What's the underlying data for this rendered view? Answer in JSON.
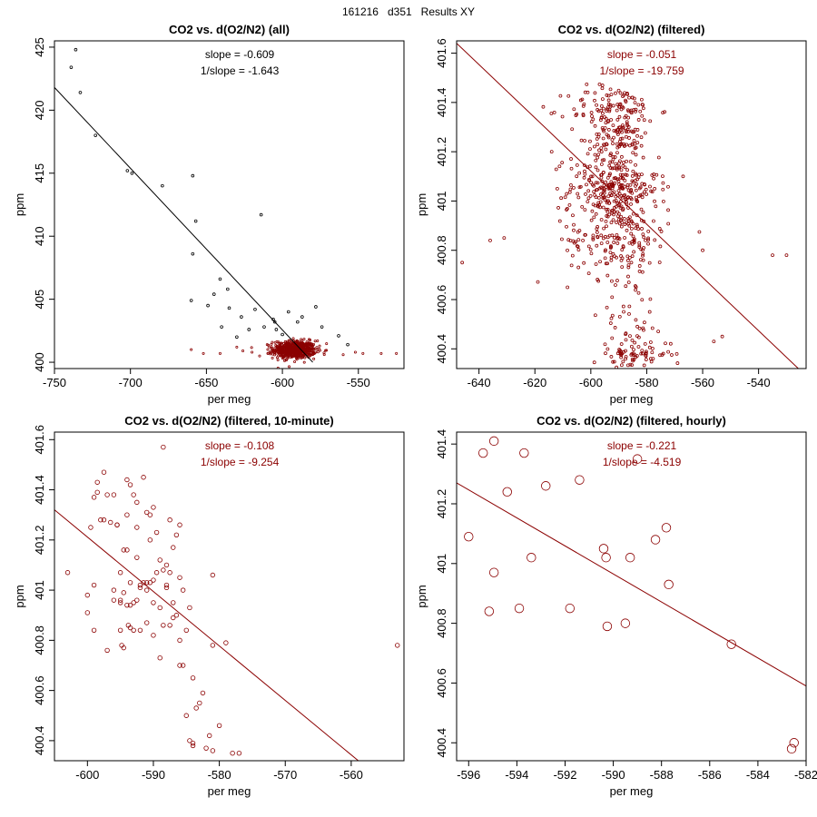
{
  "page_title": "161216   d351   Results XY",
  "colors": {
    "black": "#000000",
    "dark_red": "#8b0000"
  },
  "chart_data": [
    {
      "type": "scatter",
      "title": "CO2 vs. d(O2/N2) (all)",
      "xlabel": "per meg",
      "ylabel": "ppm",
      "xlim": [
        -750,
        -520
      ],
      "ylim": [
        399.5,
        425.5
      ],
      "xticks": [
        -750,
        -700,
        -650,
        -600,
        -550
      ],
      "yticks": [
        400,
        405,
        410,
        415,
        420,
        425
      ],
      "annotations": {
        "slope": "slope = -0.609",
        "inv_slope": "1/slope = -1.643",
        "color": "#000000"
      },
      "line": {
        "x": [
          -750,
          -580
        ],
        "y": [
          421.8,
          400.0
        ],
        "color": "#000000"
      },
      "series": [
        {
          "name": "outliers",
          "color": "#000000",
          "marker_r": 1.4,
          "points": [
            [
              -736,
              424.8
            ],
            [
              -739,
              423.4
            ],
            [
              -733,
              421.4
            ],
            [
              -723,
              418.0
            ],
            [
              -702,
              415.2
            ],
            [
              -699,
              415.0
            ],
            [
              -679,
              414.0
            ],
            [
              -659,
              414.8
            ],
            [
              -657,
              411.2
            ],
            [
              -659,
              408.6
            ],
            [
              -649,
              404.5
            ],
            [
              -645,
              405.4
            ],
            [
              -641,
              406.6
            ],
            [
              -636,
              405.8
            ],
            [
              -635,
              404.3
            ],
            [
              -630,
              402.0
            ],
            [
              -627,
              403.6
            ],
            [
              -622,
              402.6
            ],
            [
              -618,
              404.2
            ],
            [
              -614,
              411.7
            ],
            [
              -612,
              402.8
            ],
            [
              -606,
              403.4
            ],
            [
              -604,
              402.6
            ],
            [
              -600,
              402.2
            ],
            [
              -590,
              403.2
            ],
            [
              -587,
              403.6
            ],
            [
              -578,
              404.4
            ],
            [
              -574,
              402.8
            ],
            [
              -563,
              402.1
            ],
            [
              -557,
              401.4
            ],
            [
              -660,
              404.9
            ],
            [
              -605,
              403.2
            ],
            [
              -640,
              402.8
            ],
            [
              -596,
              404.0
            ]
          ]
        },
        {
          "name": "filtered",
          "color": "#8b0000",
          "marker_r": 1.1,
          "generated": true,
          "xc": -592,
          "xs": 7,
          "yc": 401.0,
          "ys": 0.35,
          "n": 650,
          "extra": [
            [
              -652,
              400.7
            ],
            [
              -641,
              400.7
            ],
            [
              -626,
              400.9
            ],
            [
              -620,
              400.8
            ],
            [
              -552,
              400.8
            ],
            [
              -547,
              400.7
            ],
            [
              -535,
              400.7
            ],
            [
              -525,
              400.7
            ],
            [
              -660,
              401.0
            ],
            [
              -615,
              400.5
            ],
            [
              -630,
              401.2
            ],
            [
              -560,
              400.6
            ]
          ]
        }
      ]
    },
    {
      "type": "scatter",
      "title": "CO2 vs. d(O2/N2) (filtered)",
      "xlabel": "per meg",
      "ylabel": "ppm",
      "xlim": [
        -648,
        -523
      ],
      "ylim": [
        400.32,
        401.65
      ],
      "xticks": [
        -640,
        -620,
        -600,
        -580,
        -560,
        -540
      ],
      "yticks": [
        400.4,
        400.6,
        400.8,
        401.0,
        401.2,
        401.4,
        401.6
      ],
      "annotations": {
        "slope": "slope = -0.051",
        "inv_slope": "1/slope = -19.759",
        "color": "#8b0000"
      },
      "line": {
        "x": [
          -648,
          -523
        ],
        "y": [
          401.64,
          400.29
        ],
        "color": "#8b0000"
      },
      "series": [
        {
          "name": "filtered",
          "color": "#8b0000",
          "marker_r": 1.5,
          "generated": true,
          "clusters": [
            {
              "yc": 401.05,
              "ys": 0.08,
              "xc": -592,
              "xs": 8,
              "n": 300
            },
            {
              "yc": 401.37,
              "ys": 0.05,
              "xc": -592,
              "xs": 8,
              "n": 120
            },
            {
              "yc": 401.25,
              "ys": 0.03,
              "xc": -590,
              "xs": 5,
              "n": 70
            },
            {
              "yc": 400.84,
              "ys": 0.08,
              "xc": -590,
              "xs": 9,
              "n": 160
            },
            {
              "yc": 400.38,
              "ys": 0.03,
              "xc": -585,
              "xs": 7,
              "n": 70
            },
            {
              "yc": 400.5,
              "ys": 0.06,
              "xc": -585,
              "xs": 6,
              "n": 35
            }
          ],
          "extra": [
            [
              -646,
              400.75
            ],
            [
              -636,
              400.84
            ],
            [
              -631,
              400.85
            ],
            [
              -535,
              400.78
            ],
            [
              -530,
              400.78
            ],
            [
              -612,
              401.05
            ],
            [
              -567,
              401.1
            ],
            [
              -560,
              400.8
            ],
            [
              -553,
              400.45
            ],
            [
              -556,
              400.43
            ],
            [
              -614,
              401.2
            ]
          ]
        }
      ]
    },
    {
      "type": "scatter",
      "title": "CO2 vs. d(O2/N2) (filtered, 10-minute)",
      "xlabel": "per meg",
      "ylabel": "ppm",
      "xlim": [
        -605,
        -552
      ],
      "ylim": [
        400.32,
        401.63
      ],
      "xticks": [
        -600,
        -590,
        -580,
        -570,
        -560
      ],
      "yticks": [
        400.4,
        400.6,
        400.8,
        401.0,
        401.2,
        401.4,
        401.6
      ],
      "annotations": {
        "slope": "slope = -0.108",
        "inv_slope": "1/slope = -9.254",
        "color": "#8b0000"
      },
      "line": {
        "x": [
          -605,
          -558
        ],
        "y": [
          401.32,
          400.3
        ],
        "color": "#8b0000"
      },
      "series": [
        {
          "name": "ten_minute",
          "color": "#8b0000",
          "marker_r": 2.3,
          "points": [
            [
              -603,
              401.07
            ],
            [
              -600,
              400.91
            ],
            [
              -600,
              400.98
            ],
            [
              -599.5,
              401.25
            ],
            [
              -599,
              400.84
            ],
            [
              -599,
              401.02
            ],
            [
              -598.5,
              401.43
            ],
            [
              -598.5,
              401.39
            ],
            [
              -598,
              401.28
            ],
            [
              -597.5,
              401.47
            ],
            [
              -597,
              401.38
            ],
            [
              -597,
              400.76
            ],
            [
              -596.5,
              401.27
            ],
            [
              -596,
              401.38
            ],
            [
              -596,
              401.0
            ],
            [
              -595.5,
              401.26
            ],
            [
              -595,
              400.84
            ],
            [
              -595,
              400.95
            ],
            [
              -595,
              401.07
            ],
            [
              -594.8,
              400.78
            ],
            [
              -594.5,
              400.99
            ],
            [
              -594.5,
              401.16
            ],
            [
              -594.5,
              400.77
            ],
            [
              -594,
              401.3
            ],
            [
              -594,
              401.44
            ],
            [
              -593.8,
              400.86
            ],
            [
              -593.5,
              401.42
            ],
            [
              -593.5,
              400.94
            ],
            [
              -593.5,
              401.03
            ],
            [
              -593,
              400.84
            ],
            [
              -593,
              401.38
            ],
            [
              -592.5,
              401.35
            ],
            [
              -592.5,
              401.25
            ],
            [
              -592.5,
              401.13
            ],
            [
              -592,
              400.84
            ],
            [
              -592,
              401.01
            ],
            [
              -591.5,
              401.03
            ],
            [
              -591.5,
              401.45
            ],
            [
              -591,
              401.31
            ],
            [
              -591,
              400.87
            ],
            [
              -590.5,
              401.3
            ],
            [
              -590.5,
              401.2
            ],
            [
              -590.5,
              401.03
            ],
            [
              -590,
              400.95
            ],
            [
              -590,
              401.33
            ],
            [
              -590,
              400.82
            ],
            [
              -589.5,
              401.23
            ],
            [
              -589,
              400.93
            ],
            [
              -589,
              401.12
            ],
            [
              -589,
              400.73
            ],
            [
              -588.5,
              401.08
            ],
            [
              -588.5,
              400.86
            ],
            [
              -588.5,
              401.57
            ],
            [
              -588,
              401.1
            ],
            [
              -588,
              401.02
            ],
            [
              -587.5,
              401.28
            ],
            [
              -587.5,
              400.86
            ],
            [
              -587.5,
              401.07
            ],
            [
              -587,
              401.17
            ],
            [
              -587,
              400.95
            ],
            [
              -587,
              400.89
            ],
            [
              -586.5,
              401.22
            ],
            [
              -586.5,
              400.9
            ],
            [
              -586,
              401.05
            ],
            [
              -586,
              400.8
            ],
            [
              -586,
              401.26
            ],
            [
              -585.5,
              400.7
            ],
            [
              -585.5,
              401.0
            ],
            [
              -585,
              400.84
            ],
            [
              -585,
              400.5
            ],
            [
              -584.5,
              400.4
            ],
            [
              -584.5,
              400.93
            ],
            [
              -584,
              400.65
            ],
            [
              -584,
              400.39
            ],
            [
              -584,
              400.38
            ],
            [
              -583.5,
              400.53
            ],
            [
              -583,
              400.55
            ],
            [
              -582.5,
              400.59
            ],
            [
              -582,
              400.37
            ],
            [
              -581.5,
              400.42
            ],
            [
              -581,
              400.78
            ],
            [
              -581,
              400.36
            ],
            [
              -581,
              401.06
            ],
            [
              -580,
              400.46
            ],
            [
              -579,
              400.79
            ],
            [
              -578,
              400.35
            ],
            [
              -577,
              400.35
            ],
            [
              -553,
              400.78
            ],
            [
              -596,
              400.96
            ],
            [
              -592,
              401.02
            ],
            [
              -594,
              401.16
            ],
            [
              -591,
              401.03
            ],
            [
              -593,
              400.95
            ],
            [
              -595.5,
              401.26
            ],
            [
              -599,
              401.37
            ],
            [
              -597.5,
              401.28
            ],
            [
              -590,
              401.04
            ],
            [
              -592.5,
              400.96
            ],
            [
              -589.5,
              401.07
            ],
            [
              -588,
              401.01
            ],
            [
              -586,
              400.7
            ],
            [
              -594,
              400.94
            ],
            [
              -591,
              401.0
            ],
            [
              -593.5,
              400.85
            ],
            [
              -595,
              400.96
            ]
          ]
        }
      ]
    },
    {
      "type": "scatter",
      "title": "CO2 vs. d(O2/N2) (filtered, hourly)",
      "xlabel": "per meg",
      "ylabel": "ppm",
      "xlim": [
        -596.5,
        -582
      ],
      "ylim": [
        400.34,
        401.44
      ],
      "xticks": [
        -596,
        -594,
        -592,
        -590,
        -588,
        -586,
        -584,
        -582
      ],
      "yticks": [
        400.4,
        400.6,
        400.8,
        401.0,
        401.2,
        401.4
      ],
      "annotations": {
        "slope": "slope = -0.221",
        "inv_slope": "1/slope = -4.519",
        "color": "#8b0000"
      },
      "line": {
        "x": [
          -596.5,
          -582
        ],
        "y": [
          401.27,
          400.59
        ],
        "color": "#8b0000"
      },
      "series": [
        {
          "name": "hourly",
          "color": "#8b0000",
          "marker_r": 4.8,
          "points": [
            [
              -596.0,
              401.09
            ],
            [
              -595.4,
              401.37
            ],
            [
              -594.95,
              401.41
            ],
            [
              -595.15,
              400.84
            ],
            [
              -594.95,
              400.97
            ],
            [
              -594.4,
              401.24
            ],
            [
              -593.7,
              401.37
            ],
            [
              -593.4,
              401.02
            ],
            [
              -593.9,
              400.85
            ],
            [
              -592.8,
              401.26
            ],
            [
              -591.8,
              400.85
            ],
            [
              -591.4,
              401.28
            ],
            [
              -590.4,
              401.05
            ],
            [
              -590.3,
              401.02
            ],
            [
              -590.25,
              400.79
            ],
            [
              -589.5,
              400.8
            ],
            [
              -589.3,
              401.02
            ],
            [
              -589.0,
              401.35
            ],
            [
              -588.25,
              401.08
            ],
            [
              -587.8,
              401.12
            ],
            [
              -587.7,
              400.93
            ],
            [
              -585.1,
              400.73
            ],
            [
              -582.6,
              400.38
            ],
            [
              -582.5,
              400.4
            ]
          ]
        }
      ]
    }
  ]
}
